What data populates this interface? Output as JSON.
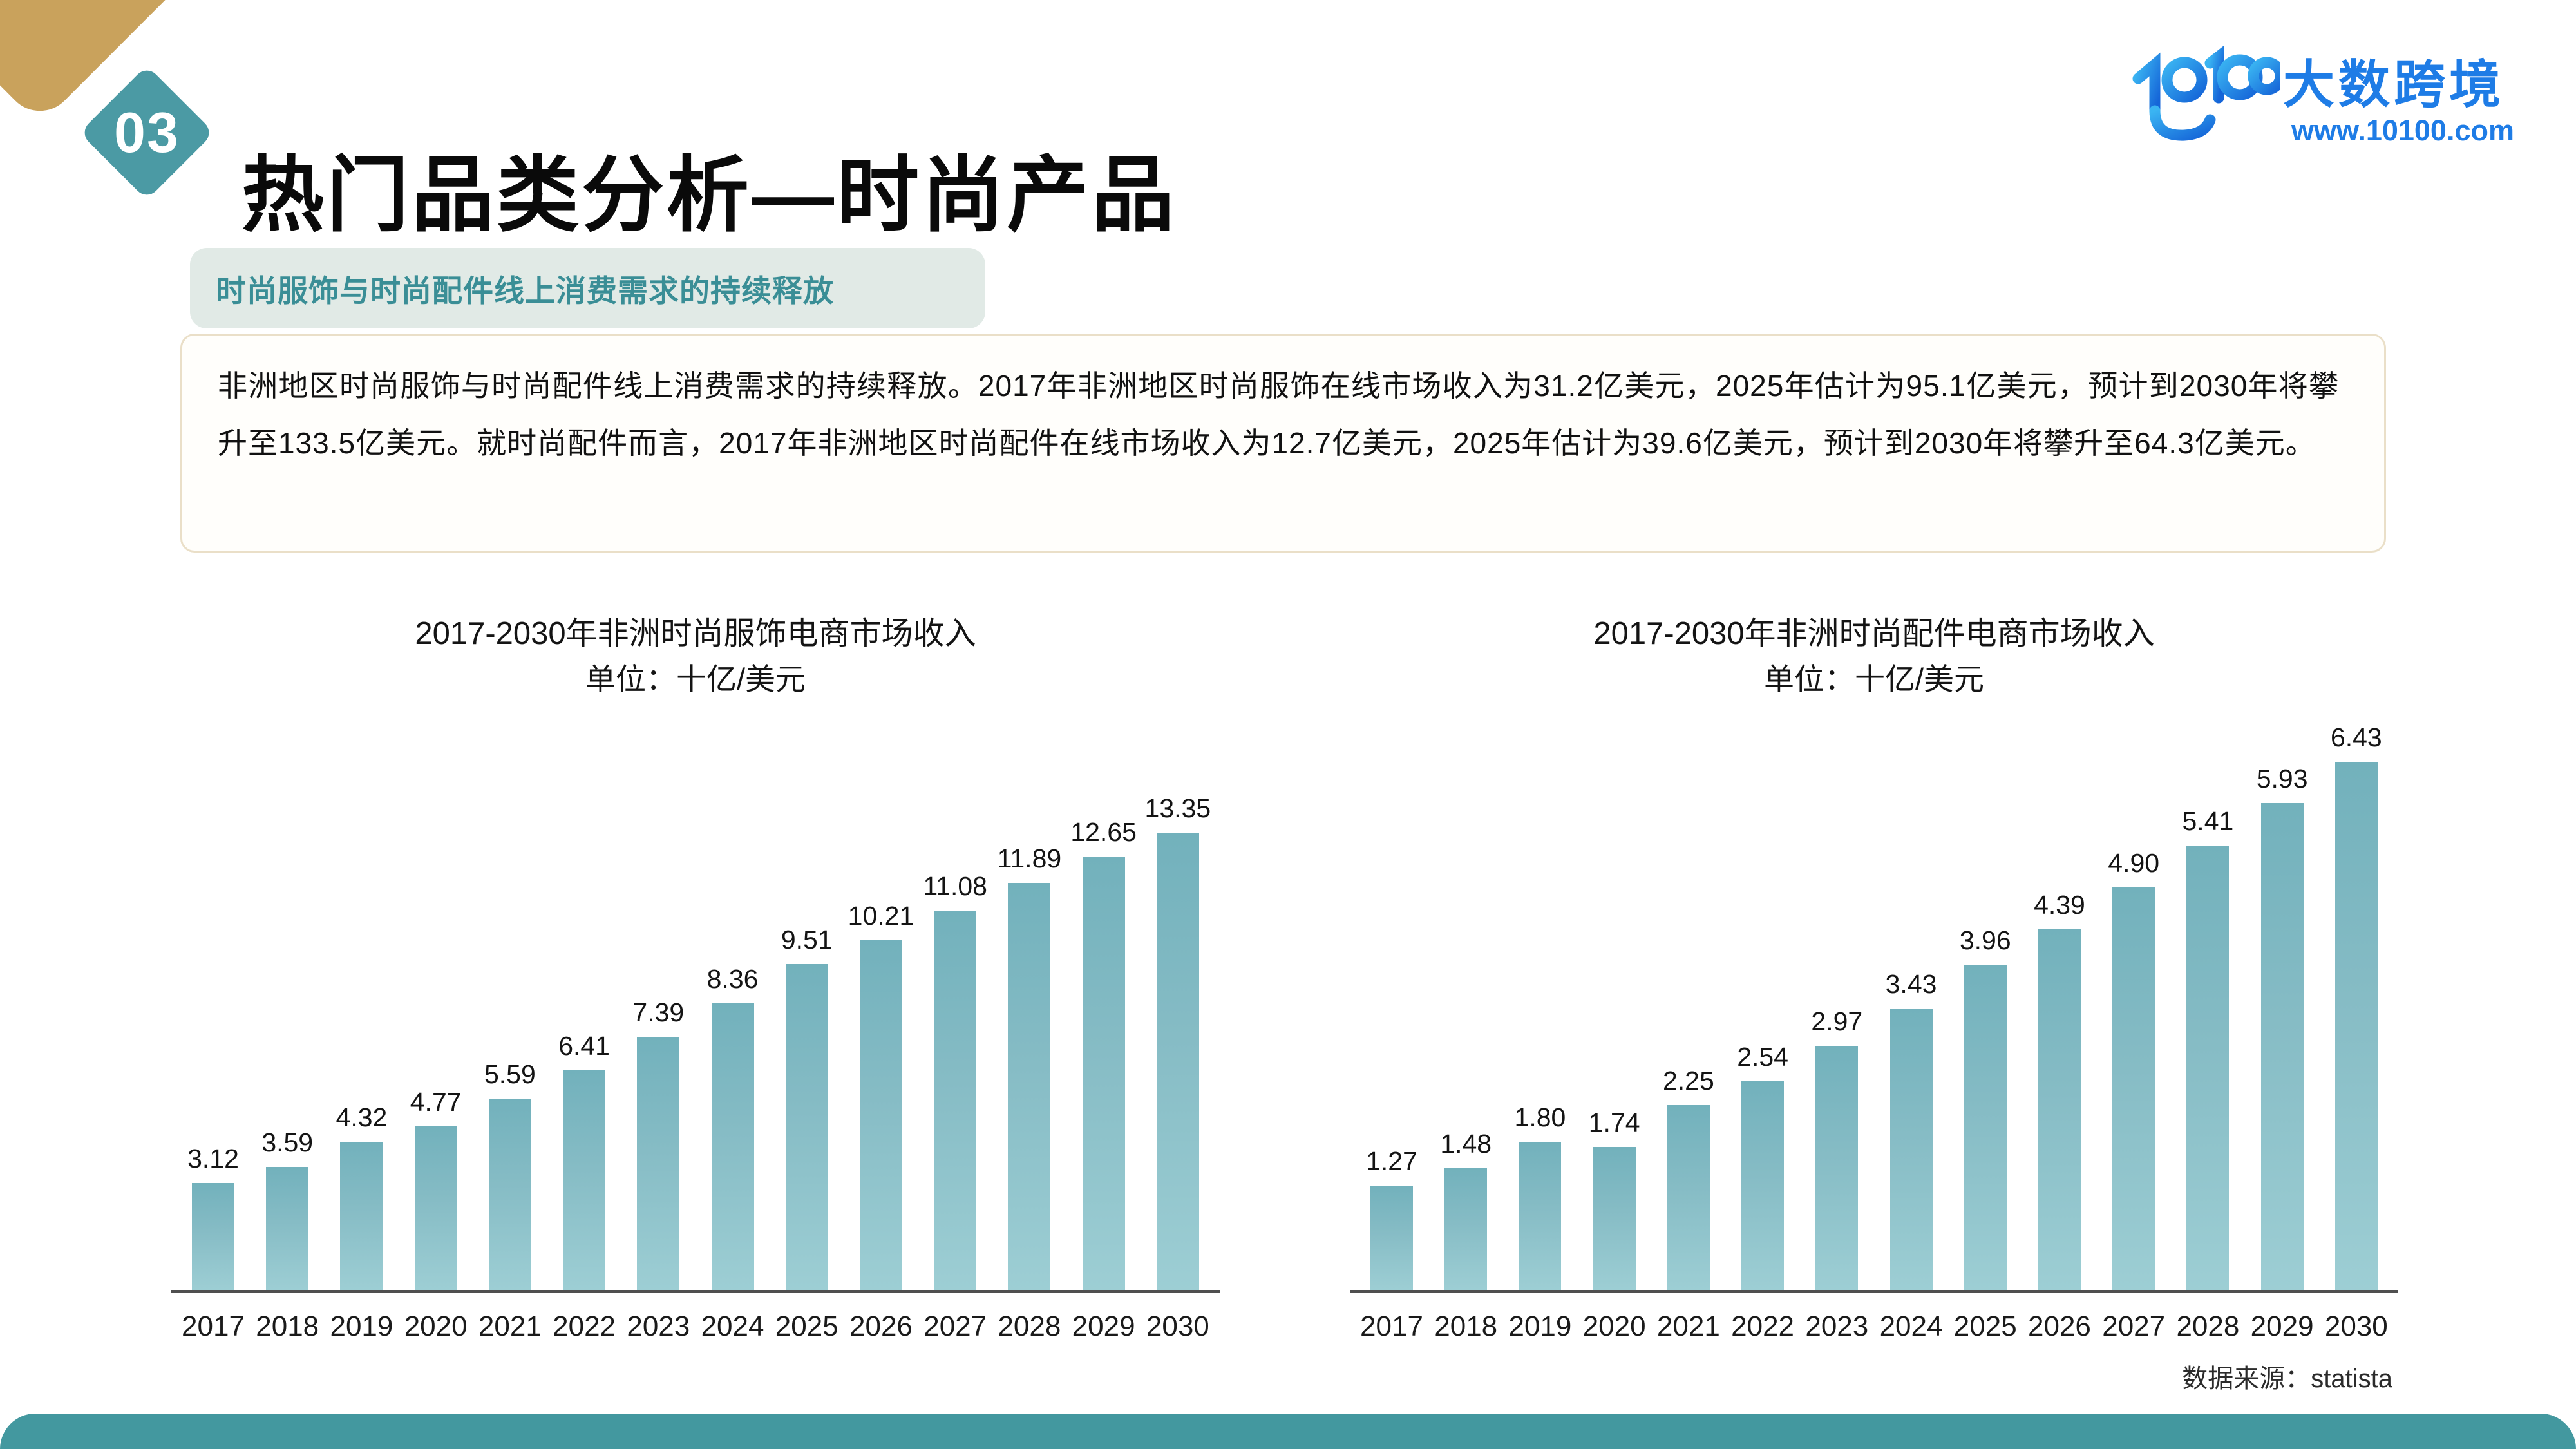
{
  "page": {
    "badge_number": "03",
    "title": "热门品类分析—时尚产品",
    "section_tag": "时尚服饰与时尚配件线上消费需求的持续释放",
    "paragraph": "非洲地区时尚服饰与时尚配件线上消费需求的持续释放。2017年非洲地区时尚服饰在线市场收入为31.2亿美元，2025年估计为95.1亿美元，预计到2030年将攀升至133.5亿美元。就时尚配件而言，2017年非洲地区时尚配件在线市场收入为12.7亿美元，2025年估计为39.6亿美元，预计到2030年将攀升至64.3亿美元。",
    "source_note": "数据来源：statista"
  },
  "logo": {
    "mark": "10100",
    "name": "大数跨境",
    "url": "www.10100.com",
    "brand_color": "#1e7ce6"
  },
  "colors": {
    "accent_teal": "#4b9aa4",
    "gold": "#c9a25c",
    "bar_gradient_top": "#72b1bc",
    "bar_gradient_bottom": "#9dced4",
    "tag_background": "#e1eae6",
    "tag_text": "#3a8e96",
    "footer_teal": "#43989f"
  },
  "chart_data": [
    {
      "type": "bar",
      "title": "2017-2030年非洲时尚服饰电商市场收入",
      "subtitle": "单位：十亿/美元",
      "categories": [
        "2017",
        "2018",
        "2019",
        "2020",
        "2021",
        "2022",
        "2023",
        "2024",
        "2025",
        "2026",
        "2027",
        "2028",
        "2029",
        "2030"
      ],
      "values": [
        3.12,
        3.59,
        4.32,
        4.77,
        5.59,
        6.41,
        7.39,
        8.36,
        9.51,
        10.21,
        11.08,
        11.89,
        12.65,
        13.35
      ],
      "labels": [
        "3.12",
        "3.59",
        "4.32",
        "4.77",
        "5.59",
        "6.41",
        "7.39",
        "8.36",
        "9.51",
        "10.21",
        "11.08",
        "11.89",
        "12.65",
        "13.35"
      ],
      "xlabel": "",
      "ylabel": "",
      "ylim": [
        0,
        13.35
      ],
      "grid": false,
      "legend": false,
      "data_labels": true
    },
    {
      "type": "bar",
      "title": "2017-2030年非洲时尚配件电商市场收入",
      "subtitle": "单位：十亿/美元",
      "categories": [
        "2017",
        "2018",
        "2019",
        "2020",
        "2021",
        "2022",
        "2023",
        "2024",
        "2025",
        "2026",
        "2027",
        "2028",
        "2029",
        "2030"
      ],
      "values": [
        1.27,
        1.48,
        1.8,
        1.74,
        2.25,
        2.54,
        2.97,
        3.43,
        3.96,
        4.39,
        4.9,
        5.41,
        5.93,
        6.43
      ],
      "labels": [
        "1.27",
        "1.48",
        "1.80",
        "1.74",
        "2.25",
        "2.54",
        "2.97",
        "3.43",
        "3.96",
        "4.39",
        "4.90",
        "5.41",
        "5.93",
        "6.43"
      ],
      "xlabel": "",
      "ylabel": "",
      "ylim": [
        0,
        6.43
      ],
      "grid": false,
      "legend": false,
      "data_labels": true
    }
  ]
}
